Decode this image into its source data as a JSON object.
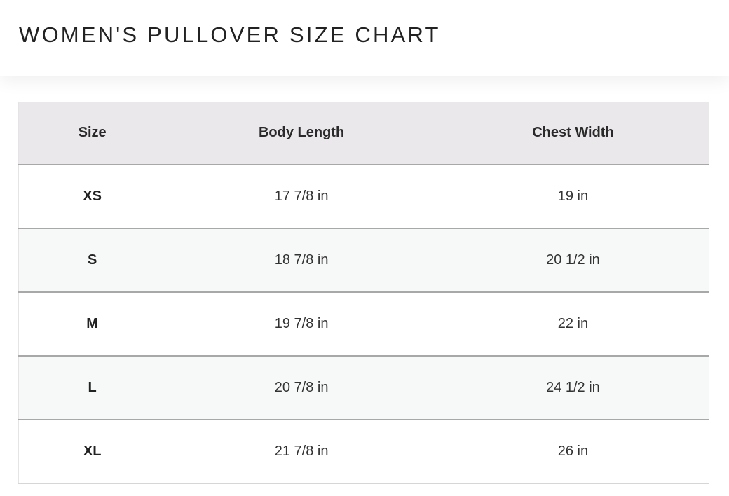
{
  "title": "WOMEN'S PULLOVER SIZE CHART",
  "table": {
    "headers": [
      "Size",
      "Body Length",
      "Chest Width"
    ],
    "rows": [
      [
        "XS",
        "17 7/8 in",
        "19 in"
      ],
      [
        "S",
        "18 7/8 in",
        "20 1/2 in"
      ],
      [
        "M",
        "19 7/8 in",
        "22 in"
      ],
      [
        "L",
        "20 7/8 in",
        "24 1/2 in"
      ],
      [
        "XL",
        "21 7/8 in",
        "26 in"
      ]
    ]
  }
}
